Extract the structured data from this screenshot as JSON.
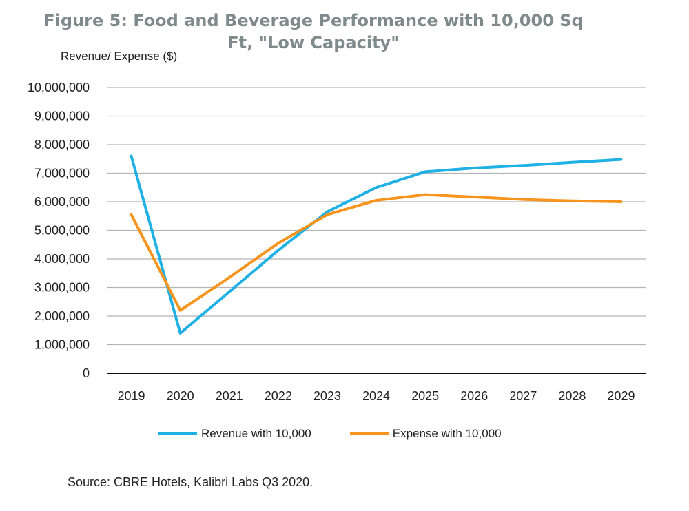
{
  "chart_data": {
    "type": "line",
    "title_line1": "Figure 5: Food and Beverage Performance with 10,000 Sq",
    "title_line2": "Ft, \"Low Capacity\"",
    "ylabel": "Revenue/ Expense ($)",
    "xlabel": "",
    "categories": [
      "2019",
      "2020",
      "2021",
      "2022",
      "2023",
      "2024",
      "2025",
      "2026",
      "2027",
      "2028",
      "2029"
    ],
    "ylim": [
      0,
      10000000
    ],
    "yticks": [
      "0",
      "1,000,000",
      "2,000,000",
      "3,000,000",
      "4,000,000",
      "5,000,000",
      "6,000,000",
      "7,000,000",
      "8,000,000",
      "9,000,000",
      "10,000,000"
    ],
    "grid": true,
    "legend_position": "bottom",
    "series": [
      {
        "name": "Revenue with 10,000",
        "color": "#1fb0e6",
        "values": [
          7600000,
          1400000,
          2850000,
          4300000,
          5650000,
          6500000,
          7050000,
          7180000,
          7270000,
          7380000,
          7480000
        ]
      },
      {
        "name": "Expense with 10,000",
        "color": "#f7941d",
        "values": [
          5550000,
          2200000,
          3350000,
          4550000,
          5550000,
          6050000,
          6250000,
          6170000,
          6080000,
          6030000,
          6000000
        ]
      }
    ],
    "source": "Source: CBRE Hotels, Kalibri Labs Q3 2020."
  }
}
